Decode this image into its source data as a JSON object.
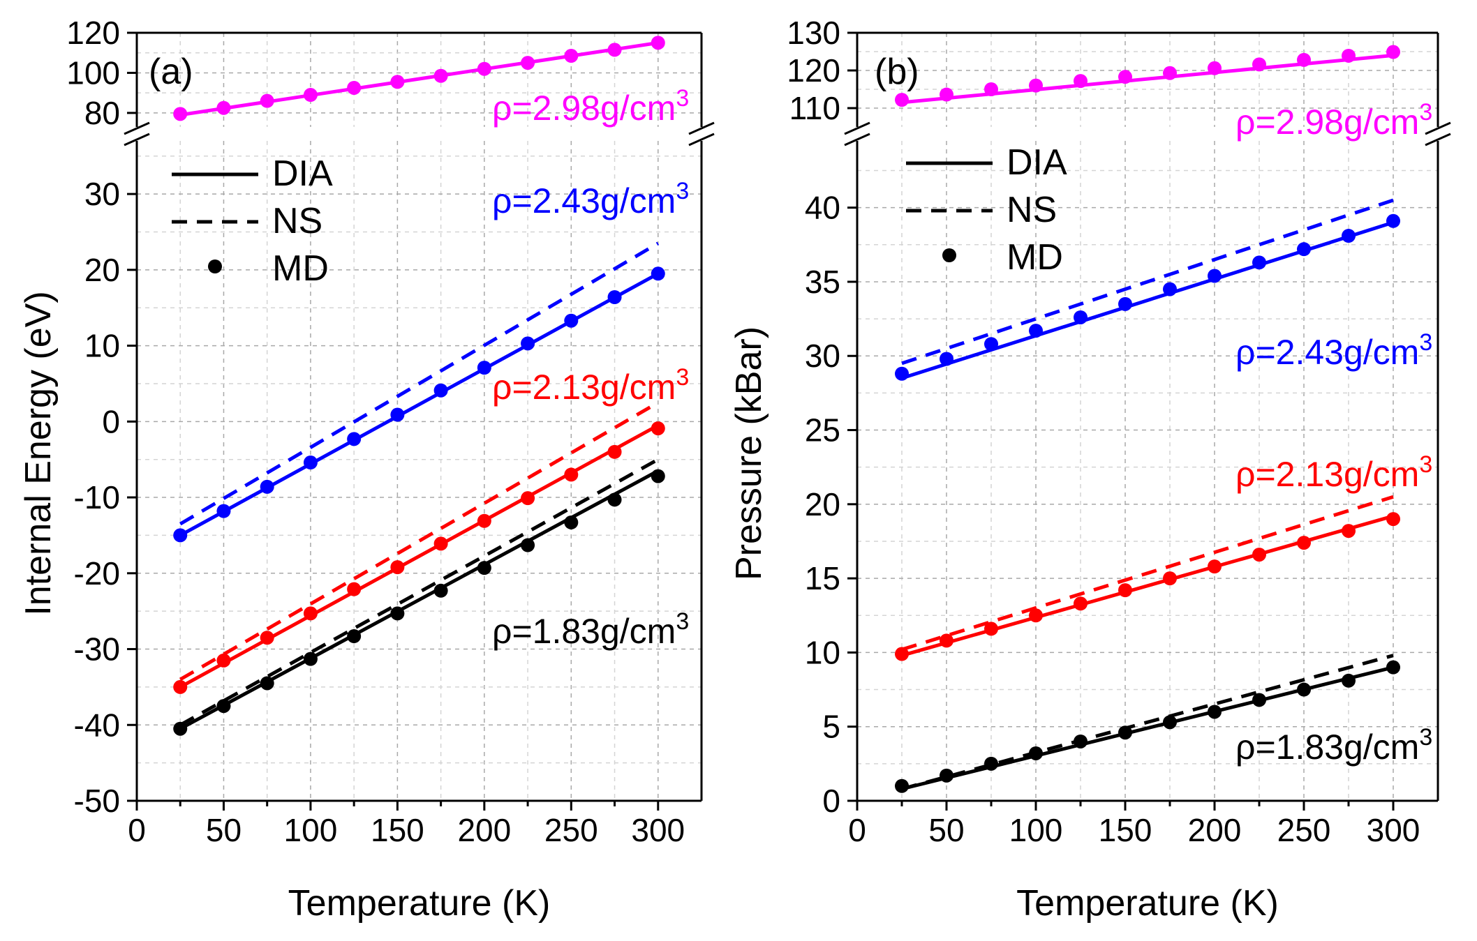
{
  "chart_data": [
    {
      "type": "line",
      "panel_label": "(a)",
      "xlabel": "Temperature (K)",
      "ylabel": "Internal Energy (eV)",
      "xlim": [
        0,
        325
      ],
      "xticks": [
        "0",
        "50",
        "100",
        "150",
        "200",
        "250",
        "300"
      ],
      "lower_ylim": [
        -50,
        37
      ],
      "lower_yticks": [
        "-50",
        "-40",
        "-30",
        "-20",
        "-10",
        "0",
        "10",
        "20",
        "30"
      ],
      "upper_ylim": [
        73,
        120
      ],
      "upper_yticks": [
        "80",
        "100",
        "120"
      ],
      "grid": true,
      "legend": [
        {
          "label": "DIA",
          "style": "solid"
        },
        {
          "label": "NS",
          "style": "dashed"
        },
        {
          "label": "MD",
          "style": "marker"
        }
      ],
      "legend_position": "top-left",
      "x": [
        25,
        50,
        75,
        100,
        125,
        150,
        175,
        200,
        225,
        250,
        275,
        300
      ],
      "series": [
        {
          "density_label": "ρ=2.98g/cm",
          "density_sup": "3",
          "color": "#ff00ff",
          "segment": "upper",
          "dia": [
            79,
            300,
            115
          ],
          "ns": [
            79,
            300,
            115
          ],
          "md": [
            79.5,
            82.5,
            86,
            89,
            92.5,
            95.5,
            98.5,
            102,
            105,
            108.5,
            111.5,
            115
          ]
        },
        {
          "density_label": "ρ=2.43g/cm",
          "density_sup": "3",
          "color": "#0000ff",
          "segment": "lower",
          "dia": [
            -15,
            300,
            19.5
          ],
          "ns": [
            -13.5,
            300,
            23.5
          ],
          "md": [
            -15,
            -11.8,
            -8.6,
            -5.4,
            -2.3,
            0.9,
            4.1,
            7.1,
            10.3,
            13.3,
            16.4,
            19.5
          ]
        },
        {
          "density_label": "ρ=2.13g/cm",
          "density_sup": "3",
          "color": "#ff0000",
          "segment": "lower",
          "dia": [
            -35,
            300,
            -0.5
          ],
          "ns": [
            -34,
            300,
            2.5
          ],
          "md": [
            -35,
            -31.5,
            -28.5,
            -25.3,
            -22.1,
            -19.2,
            -16.1,
            -13.1,
            -10.1,
            -7,
            -4,
            -0.9
          ]
        },
        {
          "density_label": "ρ=1.83g/cm",
          "density_sup": "3",
          "color": "#000000",
          "segment": "lower",
          "dia": [
            -40.5,
            300,
            -6.5
          ],
          "ns": [
            -40,
            300,
            -5
          ],
          "md": [
            -40.5,
            -37.5,
            -34.5,
            -31.3,
            -28.3,
            -25.3,
            -22.3,
            -19.3,
            -16.3,
            -13.3,
            -10.3,
            -7.2
          ]
        }
      ]
    },
    {
      "type": "line",
      "panel_label": "(b)",
      "xlabel": "Temperature (K)",
      "ylabel": "Pressure (kBar)",
      "xlim": [
        0,
        325
      ],
      "xticks": [
        "0",
        "50",
        "100",
        "150",
        "200",
        "250",
        "300"
      ],
      "lower_ylim": [
        0,
        44.5
      ],
      "lower_yticks": [
        "0",
        "5",
        "10",
        "15",
        "20",
        "25",
        "30",
        "35",
        "40"
      ],
      "upper_ylim": [
        105,
        130
      ],
      "upper_yticks": [
        "110",
        "120",
        "130"
      ],
      "grid": true,
      "legend": [
        {
          "label": "DIA",
          "style": "solid"
        },
        {
          "label": "NS",
          "style": "dashed"
        },
        {
          "label": "MD",
          "style": "marker"
        }
      ],
      "legend_position": "top-left",
      "x": [
        25,
        50,
        75,
        100,
        125,
        150,
        175,
        200,
        225,
        250,
        275,
        300
      ],
      "series": [
        {
          "density_label": "ρ=2.98g/cm",
          "density_sup": "3",
          "color": "#ff00ff",
          "segment": "upper",
          "dia": [
            111.5,
            300,
            124
          ],
          "ns": [
            111.5,
            300,
            124
          ],
          "md": [
            112.2,
            113.6,
            115,
            116,
            117.2,
            118.3,
            119.3,
            120.6,
            121.6,
            122.8,
            123.9,
            124.9
          ]
        },
        {
          "density_label": "ρ=2.43g/cm",
          "density_sup": "3",
          "color": "#0000ff",
          "segment": "lower",
          "dia": [
            28.5,
            300,
            39
          ],
          "ns": [
            29.5,
            300,
            40.5
          ],
          "md": [
            28.8,
            29.8,
            30.8,
            31.7,
            32.6,
            33.5,
            34.5,
            35.4,
            36.3,
            37.2,
            38.1,
            39.1
          ]
        },
        {
          "density_label": "ρ=2.13g/cm",
          "density_sup": "3",
          "color": "#ff0000",
          "segment": "lower",
          "dia": [
            9.8,
            300,
            19.2
          ],
          "ns": [
            10.2,
            300,
            20.5
          ],
          "md": [
            9.9,
            10.8,
            11.6,
            12.5,
            13.3,
            14.2,
            15,
            15.8,
            16.6,
            17.4,
            18.2,
            19
          ]
        },
        {
          "density_label": "ρ=1.83g/cm",
          "density_sup": "3",
          "color": "#000000",
          "segment": "lower",
          "dia": [
            0.8,
            300,
            9
          ],
          "ns": [
            0.8,
            300,
            9.8
          ],
          "md": [
            1,
            1.7,
            2.5,
            3.2,
            4,
            4.6,
            5.3,
            6,
            6.8,
            7.5,
            8.1,
            9
          ]
        }
      ]
    }
  ]
}
